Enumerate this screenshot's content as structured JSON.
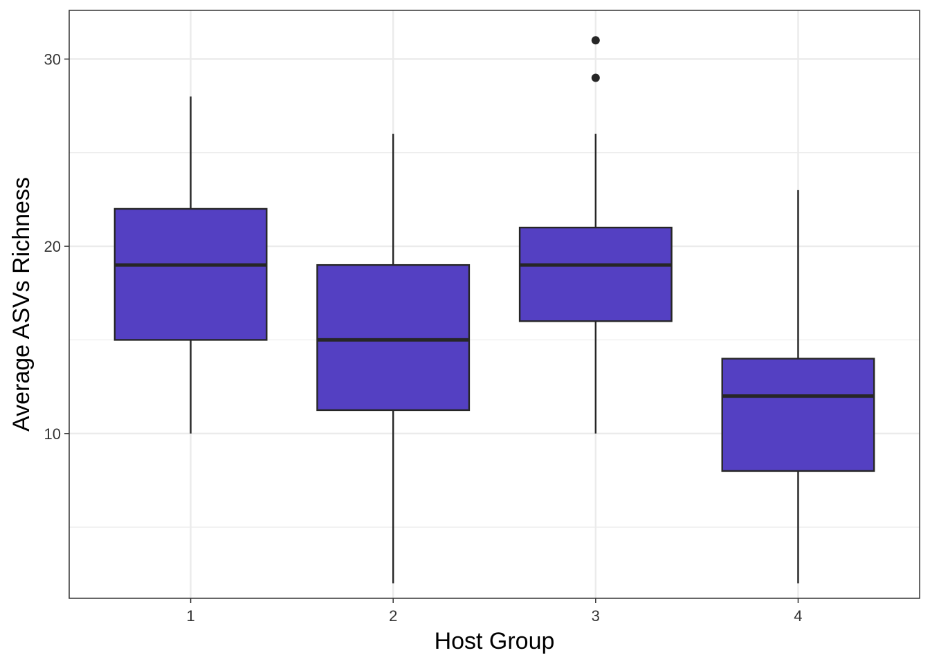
{
  "chart_data": {
    "type": "box",
    "title": "",
    "xlabel": "Host Group",
    "ylabel": "Average ASVs Richness",
    "ylim": [
      1.2,
      32.6
    ],
    "yticks": [
      10,
      20,
      30
    ],
    "yticks_minor": [
      5,
      15,
      25
    ],
    "grid": true,
    "colors": {
      "fill": "#5440C2",
      "stroke": "#262626",
      "grid": "#EBEBEB",
      "panel_border": "#333333"
    },
    "categories": [
      "1",
      "2",
      "3",
      "4"
    ],
    "boxes": [
      {
        "category": "1",
        "whisker_low": 10,
        "q1": 15,
        "median": 19,
        "q3": 22,
        "whisker_high": 28,
        "outliers": []
      },
      {
        "category": "2",
        "whisker_low": 2,
        "q1": 11.25,
        "median": 15,
        "q3": 19,
        "whisker_high": 26,
        "outliers": []
      },
      {
        "category": "3",
        "whisker_low": 10,
        "q1": 16,
        "median": 19,
        "q3": 21,
        "whisker_high": 26,
        "outliers": [
          29,
          31
        ]
      },
      {
        "category": "4",
        "whisker_low": 2,
        "q1": 8,
        "median": 12,
        "q3": 14,
        "whisker_high": 23,
        "outliers": []
      }
    ]
  }
}
